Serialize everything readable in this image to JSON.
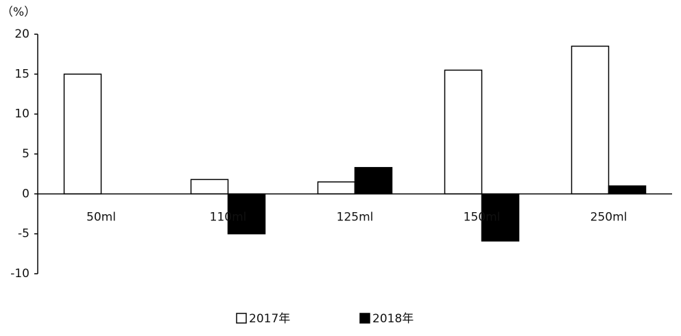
{
  "chart_data": {
    "type": "bar",
    "y_label": "（%）",
    "categories": [
      "50ml",
      "110ml",
      "125ml",
      "150ml",
      "250ml"
    ],
    "series": [
      {
        "name": "2017年",
        "color": "#ffffff",
        "values": [
          15.0,
          1.8,
          1.5,
          15.5,
          18.5
        ]
      },
      {
        "name": "2018年",
        "color": "#000000",
        "values": [
          null,
          -5.0,
          3.3,
          -5.9,
          1.0
        ]
      }
    ],
    "edgecolor": "#000000",
    "ylim": [
      -10,
      20
    ],
    "yticks": [
      -10,
      -5,
      0,
      5,
      10,
      15,
      20
    ],
    "grid": false
  }
}
